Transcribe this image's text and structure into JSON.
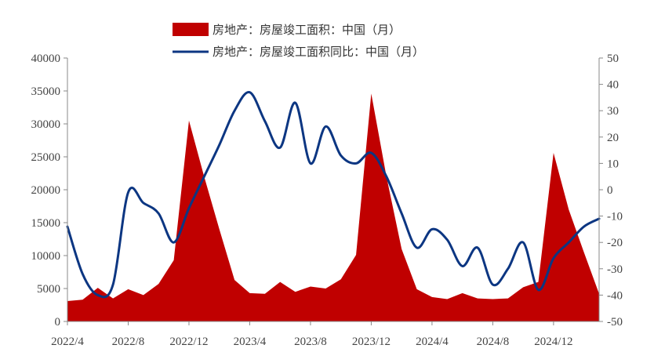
{
  "chart_data": {
    "type": "area+line",
    "x": [
      "2022/4",
      "2022/5",
      "2022/6",
      "2022/7",
      "2022/8",
      "2022/9",
      "2022/10",
      "2022/11",
      "2022/12",
      "2023/1",
      "2023/2",
      "2023/3",
      "2023/4",
      "2023/5",
      "2023/6",
      "2023/7",
      "2023/8",
      "2023/9",
      "2023/10",
      "2023/11",
      "2023/12",
      "2024/1",
      "2024/2",
      "2024/3",
      "2024/4",
      "2024/5",
      "2024/6",
      "2024/7",
      "2024/8",
      "2024/9",
      "2024/10",
      "2024/11",
      "2024/12",
      "2025/1",
      "2025/2",
      "2025/3"
    ],
    "x_tick_labels": [
      "2022/4",
      "2022/8",
      "2022/12",
      "2023/4",
      "2023/8",
      "2023/12",
      "2024/4",
      "2024/8",
      "2024/12"
    ],
    "series": [
      {
        "name": "房地产：房屋竣工面积：中国（月）",
        "type": "area",
        "axis": "left",
        "color": "#c00000",
        "values": [
          3100,
          3300,
          5100,
          3500,
          4900,
          4000,
          5700,
          9300,
          30500,
          22000,
          14000,
          6300,
          4300,
          4200,
          6000,
          4500,
          5300,
          5000,
          6400,
          10100,
          34600,
          22000,
          11000,
          4900,
          3700,
          3400,
          4300,
          3500,
          3400,
          3500,
          5200,
          6000,
          25600,
          17000,
          10500,
          4200
        ]
      },
      {
        "name": "房地产：房屋竣工面积同比：中国（月）",
        "type": "line",
        "axis": "right",
        "color": "#0c3682",
        "values": [
          -14,
          -32,
          -40,
          -36,
          -1,
          -5,
          -9,
          -20,
          -7,
          5,
          17,
          30,
          37,
          26,
          16,
          33,
          10,
          24,
          13,
          10,
          14,
          5,
          -9,
          -22,
          -15,
          -19,
          -29,
          -22,
          -36,
          -30,
          -20,
          -38,
          -26,
          -20,
          -14,
          -11
        ]
      }
    ],
    "y_left": {
      "range": [
        0,
        40000
      ],
      "ticks": [
        "0",
        "5000",
        "10000",
        "15000",
        "20000",
        "25000",
        "30000",
        "35000",
        "40000"
      ]
    },
    "y_right": {
      "range": [
        -50,
        50
      ],
      "ticks": [
        "-50",
        "-40",
        "-30",
        "-20",
        "-10",
        "0",
        "10",
        "20",
        "30",
        "40",
        "50"
      ]
    },
    "legend_position": "top-center",
    "grid": false
  }
}
